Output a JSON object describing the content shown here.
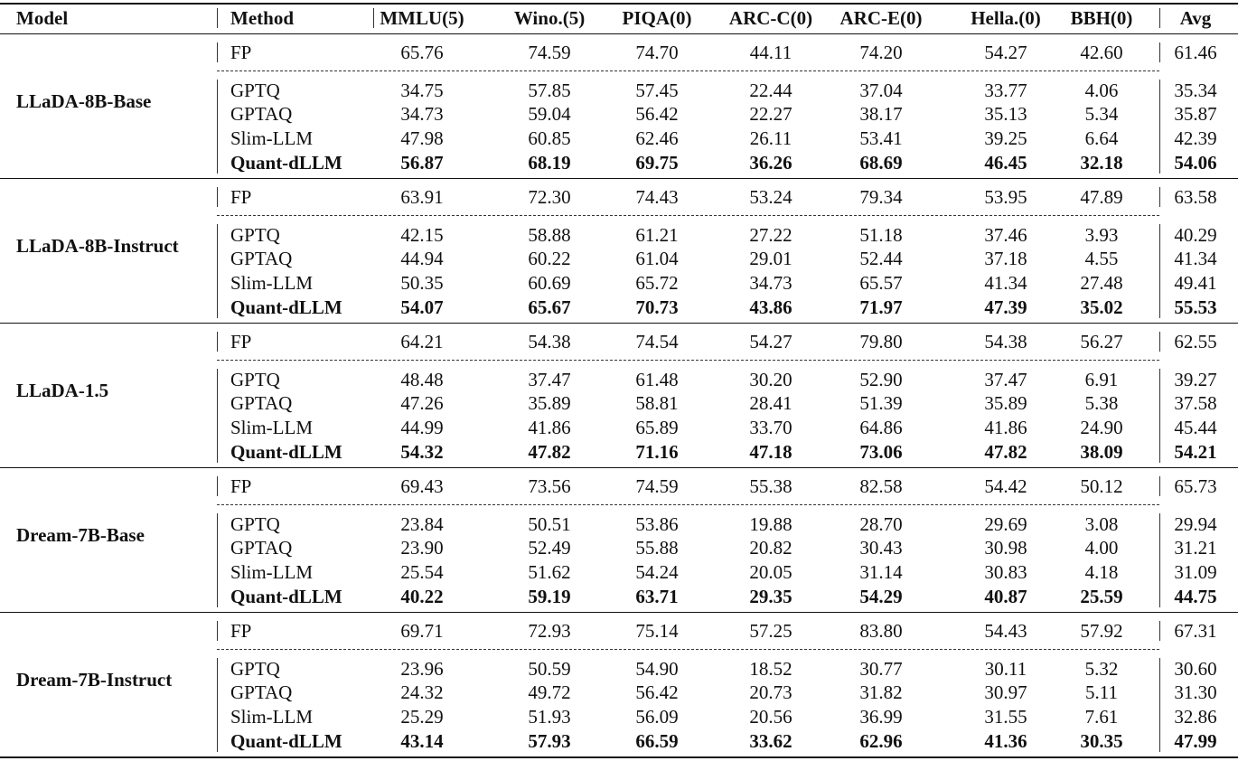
{
  "table": {
    "columns": [
      "Model",
      "Method",
      "MMLU(5)",
      "Wino.(5)",
      "PIQA(0)",
      "ARC-C(0)",
      "ARC-E(0)",
      "Hella.(0)",
      "BBH(0)",
      "Avg"
    ],
    "groups": [
      {
        "model": "LLaDA-8B-Base",
        "rows": [
          [
            "FP",
            "65.76",
            "74.59",
            "74.70",
            "44.11",
            "74.20",
            "54.27",
            "42.60",
            "61.46"
          ],
          [
            "GPTQ",
            "34.75",
            "57.85",
            "57.45",
            "22.44",
            "37.04",
            "33.77",
            "4.06",
            "35.34"
          ],
          [
            "GPTAQ",
            "34.73",
            "59.04",
            "56.42",
            "22.27",
            "38.17",
            "35.13",
            "5.34",
            "35.87"
          ],
          [
            "Slim-LLM",
            "47.98",
            "60.85",
            "62.46",
            "26.11",
            "53.41",
            "39.25",
            "6.64",
            "42.39"
          ],
          [
            "Quant-dLLM",
            "56.87",
            "68.19",
            "69.75",
            "36.26",
            "68.69",
            "46.45",
            "32.18",
            "54.06"
          ]
        ]
      },
      {
        "model": "LLaDA-8B-Instruct",
        "rows": [
          [
            "FP",
            "63.91",
            "72.30",
            "74.43",
            "53.24",
            "79.34",
            "53.95",
            "47.89",
            "63.58"
          ],
          [
            "GPTQ",
            "42.15",
            "58.88",
            "61.21",
            "27.22",
            "51.18",
            "37.46",
            "3.93",
            "40.29"
          ],
          [
            "GPTAQ",
            "44.94",
            "60.22",
            "61.04",
            "29.01",
            "52.44",
            "37.18",
            "4.55",
            "41.34"
          ],
          [
            "Slim-LLM",
            "50.35",
            "60.69",
            "65.72",
            "34.73",
            "65.57",
            "41.34",
            "27.48",
            "49.41"
          ],
          [
            "Quant-dLLM",
            "54.07",
            "65.67",
            "70.73",
            "43.86",
            "71.97",
            "47.39",
            "35.02",
            "55.53"
          ]
        ]
      },
      {
        "model": "LLaDA-1.5",
        "rows": [
          [
            "FP",
            "64.21",
            "54.38",
            "74.54",
            "54.27",
            "79.80",
            "54.38",
            "56.27",
            "62.55"
          ],
          [
            "GPTQ",
            "48.48",
            "37.47",
            "61.48",
            "30.20",
            "52.90",
            "37.47",
            "6.91",
            "39.27"
          ],
          [
            "GPTAQ",
            "47.26",
            "35.89",
            "58.81",
            "28.41",
            "51.39",
            "35.89",
            "5.38",
            "37.58"
          ],
          [
            "Slim-LLM",
            "44.99",
            "41.86",
            "65.89",
            "33.70",
            "64.86",
            "41.86",
            "24.90",
            "45.44"
          ],
          [
            "Quant-dLLM",
            "54.32",
            "47.82",
            "71.16",
            "47.18",
            "73.06",
            "47.82",
            "38.09",
            "54.21"
          ]
        ]
      },
      {
        "model": "Dream-7B-Base",
        "rows": [
          [
            "FP",
            "69.43",
            "73.56",
            "74.59",
            "55.38",
            "82.58",
            "54.42",
            "50.12",
            "65.73"
          ],
          [
            "GPTQ",
            "23.84",
            "50.51",
            "53.86",
            "19.88",
            "28.70",
            "29.69",
            "3.08",
            "29.94"
          ],
          [
            "GPTAQ",
            "23.90",
            "52.49",
            "55.88",
            "20.82",
            "30.43",
            "30.98",
            "4.00",
            "31.21"
          ],
          [
            "Slim-LLM",
            "25.54",
            "51.62",
            "54.24",
            "20.05",
            "31.14",
            "30.83",
            "4.18",
            "31.09"
          ],
          [
            "Quant-dLLM",
            "40.22",
            "59.19",
            "63.71",
            "29.35",
            "54.29",
            "40.87",
            "25.59",
            "44.75"
          ]
        ]
      },
      {
        "model": "Dream-7B-Instruct",
        "rows": [
          [
            "FP",
            "69.71",
            "72.93",
            "75.14",
            "57.25",
            "83.80",
            "54.43",
            "57.92",
            "67.31"
          ],
          [
            "GPTQ",
            "23.96",
            "50.59",
            "54.90",
            "18.52",
            "30.77",
            "30.11",
            "5.32",
            "30.60"
          ],
          [
            "GPTAQ",
            "24.32",
            "49.72",
            "56.42",
            "20.73",
            "31.82",
            "30.97",
            "5.11",
            "31.30"
          ],
          [
            "Slim-LLM",
            "25.29",
            "51.93",
            "56.09",
            "20.56",
            "36.99",
            "31.55",
            "7.61",
            "32.86"
          ],
          [
            "Quant-dLLM",
            "43.14",
            "57.93",
            "66.59",
            "33.62",
            "62.96",
            "41.36",
            "30.35",
            "47.99"
          ]
        ]
      }
    ]
  }
}
